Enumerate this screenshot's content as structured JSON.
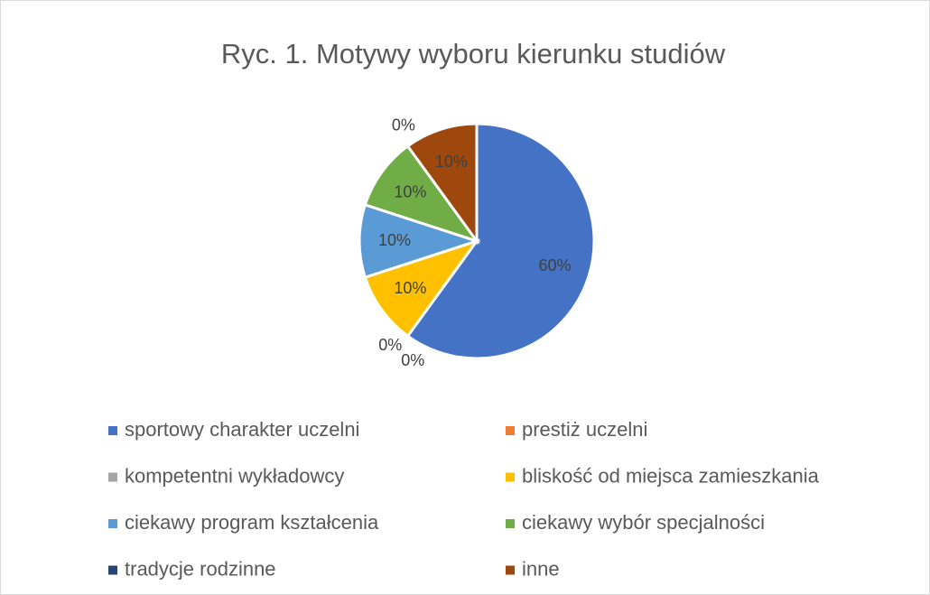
{
  "chart_data": {
    "type": "pie",
    "title": "Ryc. 1. Motywy wyboru kierunku studiów",
    "categories": [
      "sportowy charakter uczelni",
      "prestiż uczelni",
      "kompetentni wykładowcy",
      "bliskość od miejsca zamieszkania",
      "ciekawy program kształcenia",
      "ciekawy wybór specjalności",
      "tradycje rodzinne",
      "inne"
    ],
    "values": [
      60,
      0,
      0,
      10,
      10,
      10,
      0,
      10
    ],
    "value_labels": [
      "60%",
      "0%",
      "0%",
      "10%",
      "10%",
      "10%",
      "0%",
      "10%"
    ],
    "colors": [
      "#4472c4",
      "#ed7d31",
      "#a5a5a5",
      "#ffc000",
      "#5b9bd5",
      "#70ad47",
      "#264478",
      "#9e480e"
    ],
    "legend": "bottom"
  }
}
